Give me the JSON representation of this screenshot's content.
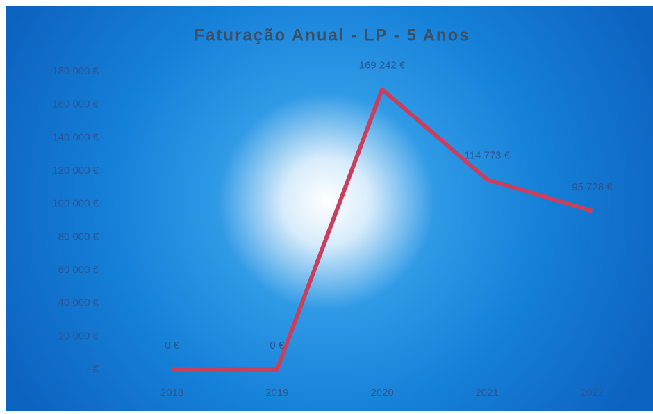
{
  "chart_data": {
    "type": "line",
    "title": "Faturação Anual - LP - 5 Anos",
    "categories": [
      "2018",
      "2019",
      "2020",
      "2021",
      "2022"
    ],
    "series": [
      {
        "name": "Faturação",
        "color": "#c9405e",
        "values": [
          0,
          0,
          169242,
          114773,
          95728
        ],
        "value_labels": [
          "0 €",
          "0 €",
          "169 242 €",
          "114 773 €",
          "95 728 €"
        ]
      }
    ],
    "ylim": [
      0,
      180000
    ],
    "yticks": [
      {
        "value": 0,
        "label": "- €"
      },
      {
        "value": 20000,
        "label": "20 000 €"
      },
      {
        "value": 40000,
        "label": "40 000 €"
      },
      {
        "value": 60000,
        "label": "60 000 €"
      },
      {
        "value": 80000,
        "label": "80 000 €"
      },
      {
        "value": 100000,
        "label": "100 000 €"
      },
      {
        "value": 120000,
        "label": "120 000 €"
      },
      {
        "value": 140000,
        "label": "140 000 €"
      },
      {
        "value": 160000,
        "label": "160 000 €"
      },
      {
        "value": 180000,
        "label": "180 000 €"
      }
    ],
    "grid": false
  }
}
